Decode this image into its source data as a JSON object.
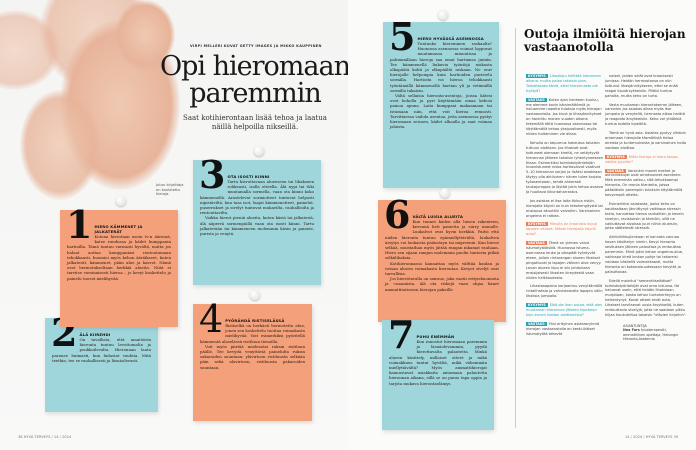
{
  "left_page": {
    "byline": "VIRPI MELLERI KUVAT GETTY IMAGES JA MIKKO KAUPPINEN",
    "title": "Opi hieromaan paremmin",
    "subtitle": "Saat kotihierontaan lisää tehoa ja laatua näillä helpoilla nikseillä.",
    "caption": "Jutun kirjoittaja on koulutettu hieroja.",
    "footer": "38 HYVÄ TERVEYS / 14 / 2024"
  },
  "tips": [
    {
      "num": "1",
      "heading": "HIERO KÄMMENET JA JALKATERÄT",
      "paras": [
        "Kotona hierotaan usein tv:n ääressä, katse ruudussa ja kädet kumppanin hartioilla. Tämä tuntuu varmasti hyvältä, mutta jos haluat auttaa kumppaniasi rentoutumaan tehokkaasti, huomioi myös kehon ääriäkseet, kuten jalkaterät, kämmenet, pään alue ja kasvot. Nämä ovat hermotukseltaan herkkiä alueita. Niitä ei tarvitse varsinaisesti hieroa – jo kevyt koskettelu ja painelu tuovat mielihyvää."
      ]
    },
    {
      "num": "2",
      "heading": "ÄLÄ KIIREHDI",
      "paras": [
        "On tavallista, että amatöörin hieronta tuntuu levottomalta ja poukkoilevalta. Hieronnan laatu paranee huimasti, kun hidastat vauhtia. Mitä teetkin, tee se rauhallisesti ja läsnäolevasti."
      ]
    },
    {
      "num": "3",
      "heading": "OTA ISOSTI KIINNI",
      "paras": [
        "Tartu hierottavaan alueeseen tai lihakseen rohkeasti, isolla otteella. Älä nypi tai töki muutamalla sormella, vaan ota kiinni koko kämmenellä. Arastelevat sormiotteet tuntuvat helposti nipistäviltä, kun taas isot, laajat kämmenotteet, painelut, puserrukset ja sivelyt tuntuvat mukavilta, rauhallisilta ja rentouttavilta.",
        "Vaikka hierot pieniä alueita, kuten käsiä tai jalkateriä, älä näperrä sormenpäillä vaan ota isosti kiinni. Tartu jalkaterään tai kämmeneen molemmin käsin ja paineie, purista ja venytä."
      ]
    },
    {
      "num": "4",
      "heading": "PYÖRÄHDÄ RISTISELÄSSÄ",
      "paras": [
        "Ristiselkä on herkästi hermotettu alue, jonen sen koskettelu tuottaa voimakasta mielihyvää. Voit esimerkiksi pyöritellä kämmentä alaselässä ristiluun tienoilla.",
        "Voit myös piirtää mielessäsi ruksin ristiluun päälle. Tee kevyitä venyttäviä painelulta ruksin sakaroiden suuntaan: ylävirtoon ristiluusta selkään päin sekä alavirtoon, ristiluusta pakaroiden suuntaan."
      ]
    },
    {
      "num": "5",
      "heading": "HIERO HYVÄSSÄ ASENNOSSA",
      "paras": [
        "Tuntuuko hierominen raskaalta? Huonossa asennossa voimat loppuvat muutamassa minuutissa ja pahimmillaan hieroja saa omat hartiansa jumiin. Tee kämmenellä liukuvia työntöjä niskasta olkapäätä kohti ja olkapäältä niskaan. Ne ovat hierojalle helpompia kuin hartioiden puristelu sormilla. Hartioita voi hieroa tehokkaasti työntämällä kämmenellä hartian yli ja vetämällä sormilla takaisin.",
        "Vältä sellaisia hieronta-asentoja, joissa kätesi ovat koholla ja pyri käyttämään omaa kehosi painoa apuna. Laita kumppani makaamaan tai istumaan niin, että voit hieroa rennosti. Tarvittaessa vaihda asentoa, jotta asennossa pystyt hieromaan seisoen, kädet alhaalla ja saat voimaa jaloista."
      ]
    },
    {
      "num": "6",
      "heading": "VÄLTÄ LUISIA ALUEITA",
      "paras": [
        "Kun tunnet käden alla luisen rakenteen, kevennä heti painetta ja siirry muualle. Luukalvot ovat hyvin herkkiä. Paitsi että niiden hieronta tuntuu epämiellyttävältä, luukalvon ärsytys voi laukaista päänsäryn tai migreenin. Kun hierot selkää, muistathan myös jättää rangan nikamat rauhaan. Hiero sen sijaan rangan molemmin puolin tuntuvia pitkiä selkälihaksia.",
        "Kotihieronnassa kannattaa myös välttää kaulan ja vatsan alueen voimakasta hierontaa. Kevyet sivelyt ovat turvallisia.",
        "Jos hierottavalla on sairaus, joka vaatii erityishuomiota ja -osaamista, älä ota riskejä vaan ohjaa hänet ammattitaitoisen hierojan pakeille."
      ]
    },
    {
      "num": "7",
      "heading": "PUHU ENEMMÄN",
      "paras": [
        "Kun innostut hieromaan paremmin ja läsnäolevammin, pyydä hierottavalta palautetta. Minkä alueen käsittely, millaiset otteet ja mikä voimakkuus tuntui hyvältä, mikä vähemmän miellyttävältä? Myös ammattihierojat kannustavat asiakkaita antamaan palautetta hieronnan aikana, sillä se on paras tapa oppia ja tarjota mukava hierontaelämys."
      ]
    }
  ],
  "right_page": {
    "title": "Outoja ilmiöitä hierojan vastaanotolla",
    "footer": "14 / 2024 / HYVÄ TERVEYS 39",
    "question_tag": "KYSYMYS",
    "answer_tag": "VASTAUS",
    "col1": [
      {
        "type": "q",
        "text": "Lihaskipu helittää hieronnan aikana, mutta palaa takaisin pian. Tarkoittaako tämä, ettei hieronnasta ole hyötyä?"
      },
      {
        "type": "a",
        "text": "Kuten ajan henkeen kuuluu, me olemme kovin kärsimättömiä ja haluamme nopeita tuloksia myös hierojan vastaanotolla. Jos kivut ja lihasjännitykset on hankittu monen vuoden aikana tekemällä töitä huonossa asennossa tai käyttämällä kehoa yksipuolisesti, myös niiden hoitaminen vie aikaa."
      },
      {
        "type": "p",
        "text": "Keholla on taipumus hakeutua takaisin tuttuun olotilaan. Jos lihakset ovat tottuneet olemaan kireitä, ne vetäytyvät hieronnan jälkeen takaisin lyhentyneeseen tilaan. Esimerkiksi toimistotyöntekijän kroonistuneet niska-hartiavaivat vaativat 5–10 hieronnan sarjan ja lisäksi asiakkaan täytyy olla aktiivinen: hänen tulee korjata työasentoaan, tehdä ahkerasti taukojumppia ja löytää jokin kehoa avaava ja huoltava liikuntaharrastus."
      },
      {
        "type": "p",
        "text": "Jos asiakas ei itse laita tikkua ristiin, hierojalla käynti on kuin tekohengitystä tai ensiapua akuuttiin vaivoihin. Varsinainen ongelma ei ratkea."
      },
      {
        "type": "q2",
        "text": "Minulla on kroonista kipua lapojen välissä. Miksei hierojalla käynti auta?"
      },
      {
        "type": "a2",
        "text": "Tämä on yleinen vaiva istumatyöläisillä. Huonossa istuma-asennossa leuka ja olkapäät työntyvät eteen, jolloin rintarangan alueen lihakset pingottuvat ja lapojen välinen alue venyy. Lavan alueen kipu ei siis johdukaan ensisijaisesti lihasten kireydestä vaan niiden heikkoudesta."
      },
      {
        "type": "p",
        "text": "Lihastasapaino korjaantuu venyttämällä rintalihaksia ja vahvistamalla lapojen välin lihaksia jumpalla."
      },
      {
        "type": "q",
        "text": "Eikö ole ihan outoa, että olen muutaman hieronnan jälkeen kipeämpi kuin ennen hoidon aloittamista?"
      },
      {
        "type": "a",
        "text": "Yksi erityinen asiakasryhmä hierojan vastaanotolla on keski-ikäiset istumatyötä tekevät"
      }
    ],
    "col2": [
      {
        "type": "p",
        "text": "naiset, joiden selät ovat kroonisesti jumissa. Heidän hermostonsa on niin tottunut lihasjännitykseen, ettei se enää reagoi kipuärsykkeisiin. Pitäisi tuntua pahalta, mutta keho on turta."
      },
      {
        "type": "p",
        "text": "Vasta muutaman hierontakerran jälkeen, varsinkin jos asiakas alkaa myös itse jumpata ja venytellä, hermosto alkaa herätä ja reagoida ärsykkeisiin. Keho voi yhtäkkiä tuntua todella kipeältä."
      },
      {
        "type": "p",
        "text": "Tämä on hyvä asia. Asiakas pystyy vihdoin antamaan hierojalle täsmällistä tietoa oireista ja tuntemuksista ja varsinainen hoito voidaan aloittaa."
      },
      {
        "type": "q2",
        "text": "Miksi hieroja ei hiero kovaa, vaikka pyydän?"
      },
      {
        "type": "a2",
        "text": "Varsinkin monet miehet ja aktiiviliikkujat ovat omaksuneet asenteen: Mitä enemmän sattuu, sitä tehokkaampi hieronta. On monia tilanteita, joissa päästäisiin parempiin tuloksiin käyttämällä kevyempiä otteita."
      },
      {
        "type": "p",
        "text": "Esimerkiksi asiakasta, jonka keho on kauttaaltaan jännittynyt vaikkapa stressin takia, kannattaa hieroa rauhallisin ja kevein sivelyin, ravistuksin ja tärinöin, sillä ne vaikuttavat aivoissa juuri niihin alueisiin, jotka säätelevät stressiä."
      },
      {
        "type": "p",
        "text": "Aktiiviliikkujienkaan ei kannata vannoa kovan käsittelyn nimiin. Kevyt hieronta sesituksen jälkeen palauttaa ja rentouttaa paremmin. Ehkä jokin kehon ongelma-alue, vaikkapa kireä lonkan pohje tai takareisi voidaan käsitellä voimakkaasti, mutta hieronta on kokonaisuudessaan kevyttä ja palauttavaa."
      },
      {
        "type": "p",
        "text": "Edellä mainitut \"sementtiselkäiset\" toimistotyöntekijät ovat oma lukunsa. He haluavat usein, että heidän lihaksiaan murjotaan, koska kehon tuntoherkkyys on heikentynyt. Kovat otteet eivät auta. Lihakset tarvitsevat uusia ärsykkeitä, kuten rentouttavia sivelyjä, jotta ne saadaan pikku hiljaa houkuteltua takaisin \"elävien kirjoihin\"."
      }
    ],
    "expert": {
      "label": "ASIANTUNTIJA",
      "name": "Nea Fors",
      "role": "fysioterapeutti, ammatillinen opettaja, Helsingin Hieronta-Akatemia"
    }
  },
  "colors": {
    "orange_note": "#f4a07a",
    "blue_note": "#9fd6dc",
    "accent_teal": "#2aa3b5",
    "accent_orange": "#e9805a"
  }
}
